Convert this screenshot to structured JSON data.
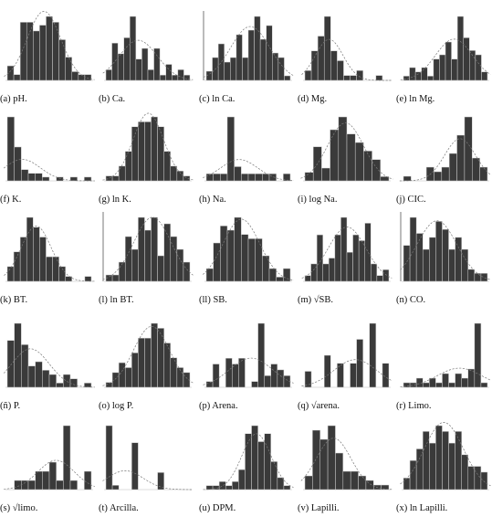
{
  "chart_data": [
    {
      "type": "bar",
      "caption": "(a) pH.",
      "values": [
        5,
        2,
        20,
        20,
        17,
        19,
        22,
        20,
        14,
        8,
        3,
        2,
        2
      ],
      "vline": false
    },
    {
      "type": "bar",
      "caption": "(b) Ca.",
      "values": [
        2,
        7,
        5,
        8,
        12,
        4,
        6,
        2,
        6,
        1,
        3,
        1,
        2,
        1
      ],
      "vline": false
    },
    {
      "type": "bar",
      "caption": "(c) ln Ca.",
      "values": [
        2,
        5,
        8,
        4,
        5,
        10,
        5,
        11,
        14,
        9,
        12,
        6,
        5,
        1
      ],
      "vline": true
    },
    {
      "type": "bar",
      "caption": "(d) Mg.",
      "values": [
        2,
        6,
        9,
        13,
        6,
        4,
        1,
        1,
        2,
        0,
        0,
        1,
        0
      ],
      "vline": false
    },
    {
      "type": "bar",
      "caption": "(e)  ln Mg.",
      "values": [
        1,
        3,
        2,
        3,
        1,
        5,
        6,
        9,
        5,
        15,
        10,
        7,
        6,
        2
      ],
      "vline": false
    },
    {
      "type": "bar",
      "caption": "(f) K.",
      "values": [
        17,
        9,
        3,
        2,
        2,
        1,
        0,
        1,
        0,
        1,
        0,
        1
      ],
      "vline": false
    },
    {
      "type": "bar",
      "caption": "(g) ln K.",
      "values": [
        1,
        1,
        3,
        6,
        11,
        12,
        12,
        13,
        11,
        6,
        3,
        2,
        1
      ],
      "vline": false
    },
    {
      "type": "bar",
      "caption": "(h) Na.",
      "values": [
        1,
        1,
        1,
        9,
        2,
        1,
        1,
        1,
        1,
        1,
        0,
        1
      ],
      "vline": false
    },
    {
      "type": "bar",
      "caption": "(i) log Na.",
      "values": [
        2,
        8,
        3,
        12,
        15,
        11,
        9,
        7,
        5,
        1
      ],
      "vline": false
    },
    {
      "type": "bar",
      "caption": "(j) CIC.",
      "values": [
        1,
        0,
        0,
        3,
        2,
        3,
        6,
        10,
        14,
        5,
        3
      ],
      "vline": false
    },
    {
      "type": "bar",
      "caption": "(k) BT.",
      "values": [
        3,
        6,
        9,
        13,
        11,
        9,
        5,
        5,
        3,
        1,
        0,
        0,
        1
      ],
      "vline": false
    },
    {
      "type": "bar",
      "caption": "(l) ln BT.",
      "values": [
        1,
        1,
        3,
        7,
        5,
        10,
        8,
        10,
        4,
        9,
        7,
        5,
        3
      ],
      "vline": true
    },
    {
      "type": "bar",
      "caption": "(ll) SB.",
      "values": [
        3,
        9,
        13,
        12,
        15,
        11,
        10,
        10,
        6,
        3,
        1,
        3
      ],
      "vline": false
    },
    {
      "type": "bar",
      "caption": "(m) √SB.",
      "values": [
        1,
        3,
        8,
        3,
        4,
        8,
        11,
        5,
        8,
        7,
        10,
        3,
        1,
        2
      ],
      "vline": false
    },
    {
      "type": "bar",
      "caption": "(n) CO.",
      "values": [
        9,
        16,
        12,
        8,
        11,
        15,
        13,
        8,
        11,
        8,
        3,
        2,
        2
      ],
      "vline": true
    },
    {
      "type": "bar",
      "caption": "(ñ) P.",
      "values": [
        11,
        15,
        10,
        5,
        6,
        4,
        3,
        1,
        3,
        2,
        0,
        1
      ],
      "vline": false
    },
    {
      "type": "bar",
      "caption": "(o) log P.",
      "values": [
        1,
        3,
        5,
        4,
        7,
        10,
        10,
        13,
        12,
        9,
        6,
        4,
        3
      ],
      "vline": false
    },
    {
      "type": "bar",
      "caption": "(p) Arena.",
      "values": [
        1,
        4,
        0,
        5,
        4,
        5,
        0,
        1,
        11,
        2,
        4,
        3,
        2
      ],
      "vline": false
    },
    {
      "type": "bar",
      "caption": "(q) √arena.",
      "values": [
        2,
        0,
        0,
        4,
        0,
        3,
        0,
        3,
        6,
        0,
        8,
        0,
        3
      ],
      "vline": false
    },
    {
      "type": "bar",
      "caption": "(r) Limo.",
      "values": [
        1,
        1,
        2,
        1,
        2,
        1,
        3,
        1,
        3,
        2,
        4,
        14,
        1
      ],
      "vline": false
    },
    {
      "type": "bar",
      "caption": "(s) √limo.",
      "values": [
        0,
        1,
        1,
        1,
        2,
        2,
        3,
        1,
        7,
        1,
        0,
        2
      ],
      "vline": false
    },
    {
      "type": "bar",
      "caption": "(t) Arcilla.",
      "values": [
        15,
        1,
        0,
        0,
        11,
        0,
        0,
        0,
        4,
        0,
        0,
        0,
        0
      ],
      "vline": false
    },
    {
      "type": "bar",
      "caption": "(u) DPM.",
      "values": [
        1,
        1,
        2,
        1,
        2,
        5,
        14,
        16,
        12,
        14,
        7,
        3,
        1
      ],
      "vline": false
    },
    {
      "type": "bar",
      "caption": "(v) Lapilli.",
      "values": [
        3,
        13,
        11,
        14,
        8,
        4,
        4,
        3,
        2,
        1,
        1
      ],
      "vline": false
    },
    {
      "type": "bar",
      "caption": "(x) ln Lapilli.",
      "values": [
        2,
        5,
        7,
        10,
        8,
        11,
        10,
        8,
        10,
        6,
        4,
        4,
        3
      ],
      "vline": false
    }
  ]
}
